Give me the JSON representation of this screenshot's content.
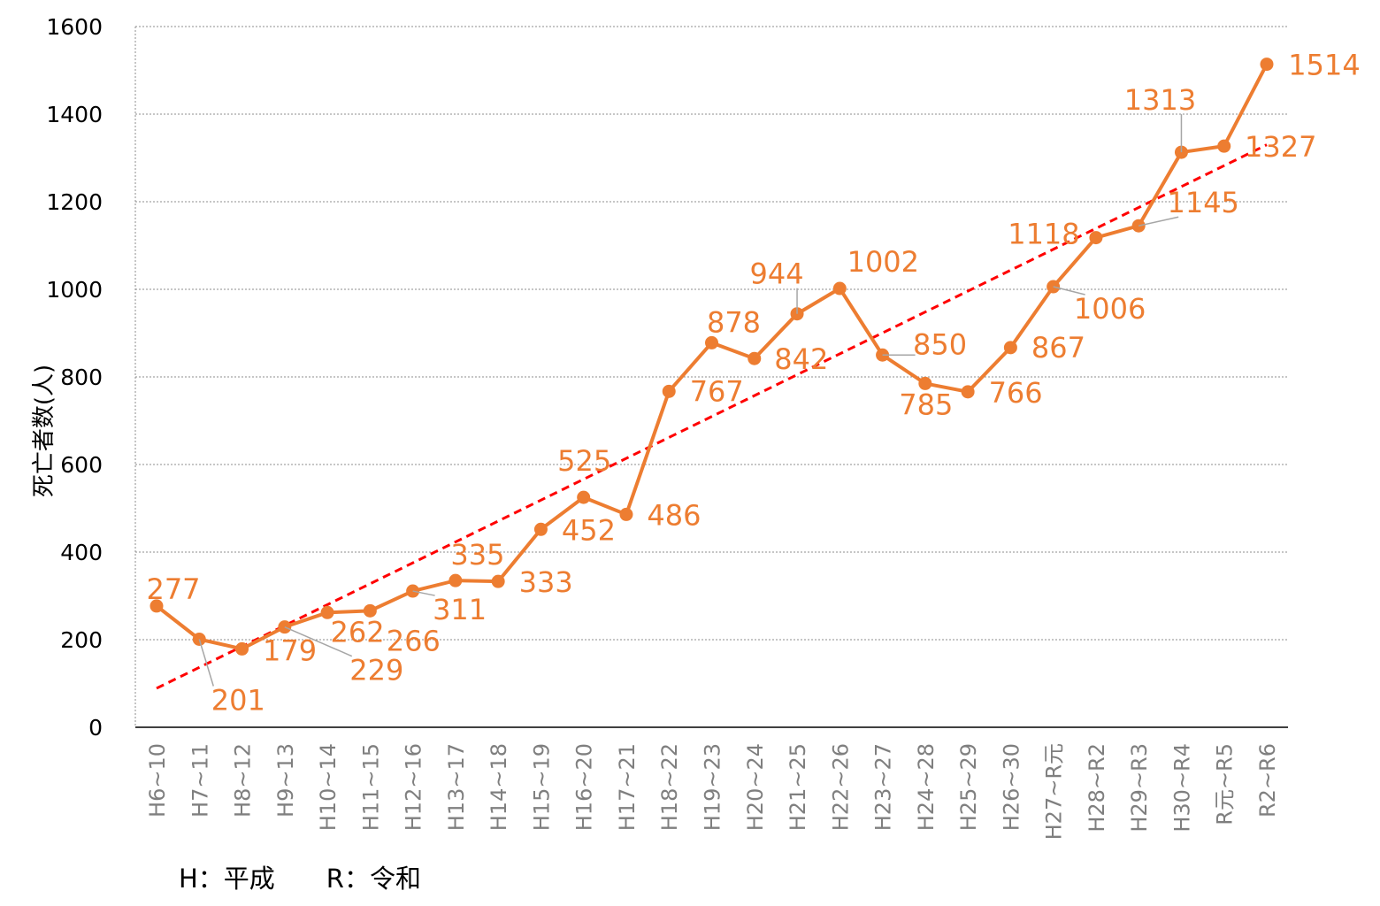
{
  "chart_data": {
    "type": "line",
    "title": "",
    "xlabel": "",
    "ylabel": "死亡者数(人)",
    "ylim": [
      0,
      1600
    ],
    "yticks": [
      0,
      200,
      400,
      600,
      800,
      1000,
      1200,
      1400,
      1600
    ],
    "grid": true,
    "categories": [
      "H6~10",
      "H7~11",
      "H8~12",
      "H9~13",
      "H10~14",
      "H11~15",
      "H12~16",
      "H13~17",
      "H14~18",
      "H15~19",
      "H16~20",
      "H17~21",
      "H18~22",
      "H19~23",
      "H20~24",
      "H21~25",
      "H22~26",
      "H23~27",
      "H24~28",
      "H25~29",
      "H26~30",
      "H27~R元",
      "H28~R2",
      "H29~R3",
      "H30~R4",
      "R元~R5",
      "R2~R6"
    ],
    "series": [
      {
        "values": [
          277,
          201,
          179,
          229,
          262,
          266,
          311,
          335,
          333,
          452,
          525,
          486,
          767,
          878,
          842,
          944,
          1002,
          850,
          785,
          766,
          867,
          1006,
          1118,
          1145,
          1313,
          1327,
          1514
        ],
        "color": "#ED7D31",
        "data_labels": true
      }
    ],
    "trendline": {
      "type": "linear",
      "color": "#FF0000",
      "style": "dashed",
      "start": 89,
      "end": 1330
    }
  },
  "note": {
    "text": "H：平成　　R：令和"
  }
}
